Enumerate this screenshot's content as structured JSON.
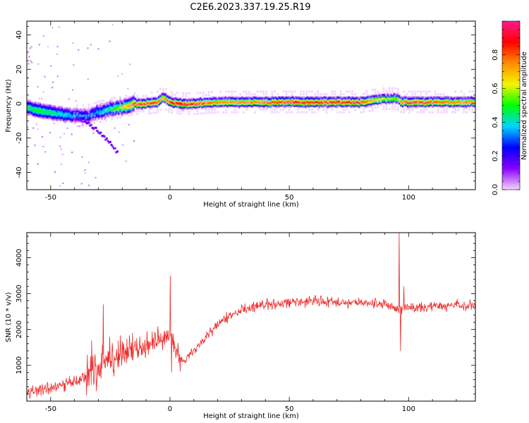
{
  "figure": {
    "title": "C2E6.2023.337.19.25.R19"
  },
  "chart_data": [
    {
      "type": "heatmap",
      "name": "spectrogram",
      "xlabel": "Height of straight line (km)",
      "ylabel": "Frequency (Hz)",
      "xlim": [
        -60,
        128
      ],
      "ylim": [
        -50,
        48
      ],
      "xticks": [
        -50,
        0,
        50,
        100
      ],
      "yticks": [
        -40,
        -20,
        0,
        20,
        40
      ],
      "tick_labels_x": [
        "-50",
        "0",
        "50",
        "100"
      ],
      "tick_labels_y": [
        "-40",
        "-20",
        "0",
        "20",
        "40"
      ],
      "grid": false,
      "colorscale": {
        "label": "Normalized spectral amplitude",
        "range": [
          0.0,
          1.0
        ],
        "ticks": [
          0.0,
          0.2,
          0.4,
          0.6,
          0.8
        ],
        "tick_labels": [
          "0.0",
          "0.2",
          "0.4",
          "0.6",
          "0.8"
        ],
        "colors": [
          "#f7d4ff",
          "#8a00ff",
          "#0000ff",
          "#00d4ff",
          "#00ff00",
          "#f5f500",
          "#ff8c00",
          "#ff0000",
          "#ff1a8c"
        ]
      },
      "ridge": {
        "x": [
          -60,
          -55,
          -50,
          -45,
          -40,
          -35,
          -30,
          -25,
          -20,
          -15,
          -10,
          -5,
          -3,
          0,
          5,
          10,
          20,
          30,
          40,
          50,
          60,
          70,
          80,
          85,
          90,
          95,
          97,
          100,
          110,
          120,
          128
        ],
        "y": [
          -2,
          -4,
          -5,
          -6,
          -7,
          -7,
          -5,
          -3,
          -2,
          0,
          0,
          1,
          4,
          1,
          0,
          0,
          1,
          1,
          1,
          1,
          1,
          1,
          1,
          2,
          3,
          3,
          1,
          1,
          1,
          1,
          1
        ],
        "amp": [
          0.45,
          0.5,
          0.45,
          0.4,
          0.35,
          0.3,
          0.35,
          0.45,
          0.6,
          0.8,
          0.85,
          0.8,
          0.7,
          0.85,
          0.9,
          0.85,
          0.75,
          0.75,
          0.8,
          0.85,
          0.85,
          0.85,
          0.85,
          0.7,
          0.6,
          0.55,
          0.75,
          0.85,
          0.8,
          0.75,
          0.75
        ]
      },
      "branch": {
        "x": [
          -40,
          -37,
          -34,
          -31,
          -28,
          -25,
          -22
        ],
        "y": [
          -8,
          -10,
          -12,
          -15,
          -19,
          -23,
          -28
        ]
      },
      "axis_color": "#000000"
    },
    {
      "type": "line",
      "name": "snr",
      "xlabel": "Height of straight line (km)",
      "ylabel": "SNR (10 * v/v)",
      "xlim": [
        -60,
        128
      ],
      "ylim": [
        0,
        4700
      ],
      "xticks": [
        -50,
        0,
        50,
        100
      ],
      "yticks": [
        1000,
        2000,
        3000,
        4000
      ],
      "tick_labels_x": [
        "-50",
        "0",
        "50",
        "100"
      ],
      "tick_labels_y": [
        "1000",
        "2000",
        "3000",
        "4000"
      ],
      "grid": false,
      "color": "#ee2a2a",
      "trend": {
        "x": [
          -60,
          -50,
          -40,
          -30,
          -25,
          -20,
          -10,
          -5,
          0,
          5,
          10,
          15,
          20,
          25,
          30,
          40,
          50,
          60,
          70,
          80,
          90,
          95,
          100,
          110,
          120,
          128
        ],
        "y": [
          250,
          350,
          550,
          900,
          1200,
          1350,
          1500,
          1650,
          1800,
          1100,
          1400,
          1800,
          2150,
          2350,
          2550,
          2700,
          2750,
          2800,
          2750,
          2750,
          2700,
          2600,
          2600,
          2650,
          2650,
          2650
        ]
      },
      "spikes": [
        {
          "x": 0,
          "y": 3500
        },
        {
          "x": 0.6,
          "y": 800
        },
        {
          "x": -28,
          "y": 2700
        },
        {
          "x": -33,
          "y": 1700
        },
        {
          "x": 96,
          "y": 4700
        },
        {
          "x": 96.5,
          "y": 1400
        },
        {
          "x": 98,
          "y": 3200
        }
      ]
    }
  ]
}
